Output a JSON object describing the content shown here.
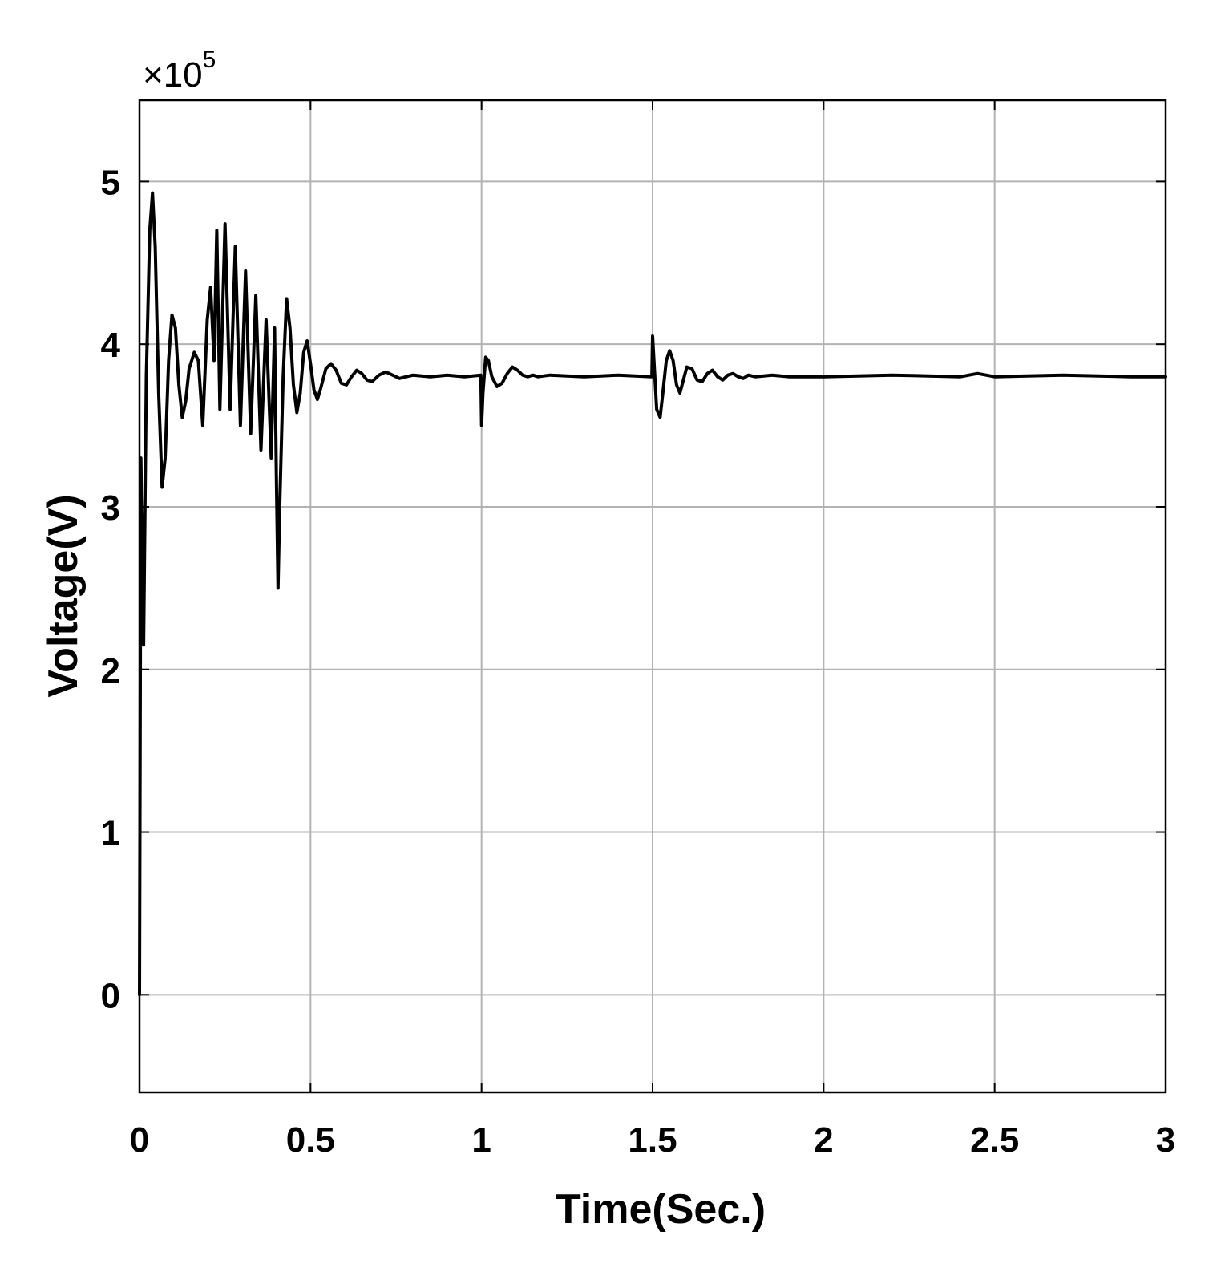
{
  "chart_data": {
    "type": "line",
    "title": "",
    "xlabel": "Time(Sec.)",
    "ylabel": "Voltage(V)",
    "y_multiplier_label": "×10",
    "y_multiplier_exponent": "5",
    "xlim": [
      0,
      3
    ],
    "ylim": [
      -0.6,
      5.5
    ],
    "x_ticks": [
      0,
      0.5,
      1,
      1.5,
      2,
      2.5,
      3
    ],
    "x_tick_labels": [
      "0",
      "0.5",
      "1",
      "1.5",
      "2",
      "2.5",
      "3"
    ],
    "y_ticks": [
      0,
      1,
      2,
      3,
      4,
      5
    ],
    "y_tick_labels": [
      "0",
      "1",
      "2",
      "3",
      "4",
      "5"
    ],
    "grid": true,
    "series": [
      {
        "x": [
          0,
          0.004,
          0.012,
          0.02,
          0.03,
          0.038,
          0.046,
          0.056,
          0.066,
          0.075,
          0.085,
          0.095,
          0.105,
          0.115,
          0.125,
          0.135,
          0.145,
          0.16,
          0.172,
          0.185,
          0.198,
          0.208,
          0.218,
          0.226,
          0.235,
          0.25,
          0.265,
          0.28,
          0.295,
          0.31,
          0.325,
          0.34,
          0.355,
          0.37,
          0.385,
          0.395,
          0.4,
          0.405,
          0.41,
          0.42,
          0.43,
          0.44,
          0.45,
          0.46,
          0.47,
          0.48,
          0.49,
          0.5,
          0.51,
          0.52,
          0.53,
          0.545,
          0.56,
          0.575,
          0.59,
          0.605,
          0.62,
          0.635,
          0.65,
          0.665,
          0.68,
          0.7,
          0.72,
          0.74,
          0.76,
          0.78,
          0.8,
          0.85,
          0.9,
          0.95,
          0.998,
          1.0,
          1.004,
          1.012,
          1.02,
          1.03,
          1.045,
          1.06,
          1.075,
          1.09,
          1.105,
          1.12,
          1.135,
          1.15,
          1.165,
          1.2,
          1.3,
          1.4,
          1.498,
          1.5,
          1.504,
          1.512,
          1.522,
          1.53,
          1.54,
          1.55,
          1.56,
          1.57,
          1.58,
          1.59,
          1.6,
          1.615,
          1.63,
          1.645,
          1.66,
          1.675,
          1.69,
          1.705,
          1.72,
          1.735,
          1.75,
          1.765,
          1.78,
          1.8,
          1.85,
          1.9,
          2.0,
          2.2,
          2.4,
          2.45,
          2.5,
          2.7,
          2.9,
          3.0
        ],
        "values": [
          0,
          3.3,
          2.15,
          3.8,
          4.7,
          4.93,
          4.6,
          3.7,
          3.12,
          3.3,
          3.9,
          4.18,
          4.1,
          3.75,
          3.55,
          3.65,
          3.85,
          3.95,
          3.9,
          3.5,
          4.15,
          4.35,
          3.9,
          4.7,
          3.6,
          4.74,
          3.6,
          4.6,
          3.5,
          4.45,
          3.45,
          4.3,
          3.35,
          4.15,
          3.3,
          4.1,
          3.2,
          2.5,
          3.0,
          3.8,
          4.28,
          4.1,
          3.75,
          3.58,
          3.7,
          3.95,
          4.02,
          3.88,
          3.72,
          3.66,
          3.73,
          3.85,
          3.88,
          3.84,
          3.76,
          3.75,
          3.8,
          3.84,
          3.82,
          3.78,
          3.77,
          3.81,
          3.83,
          3.81,
          3.79,
          3.8,
          3.81,
          3.8,
          3.81,
          3.8,
          3.81,
          3.5,
          3.7,
          3.92,
          3.9,
          3.8,
          3.74,
          3.76,
          3.82,
          3.86,
          3.84,
          3.81,
          3.8,
          3.81,
          3.8,
          3.81,
          3.8,
          3.81,
          3.8,
          4.05,
          3.9,
          3.6,
          3.55,
          3.7,
          3.9,
          3.96,
          3.9,
          3.75,
          3.7,
          3.78,
          3.86,
          3.85,
          3.78,
          3.77,
          3.82,
          3.84,
          3.8,
          3.78,
          3.81,
          3.82,
          3.8,
          3.79,
          3.81,
          3.8,
          3.81,
          3.8,
          3.8,
          3.81,
          3.8,
          3.82,
          3.8,
          3.81,
          3.8,
          3.8
        ]
      }
    ]
  }
}
